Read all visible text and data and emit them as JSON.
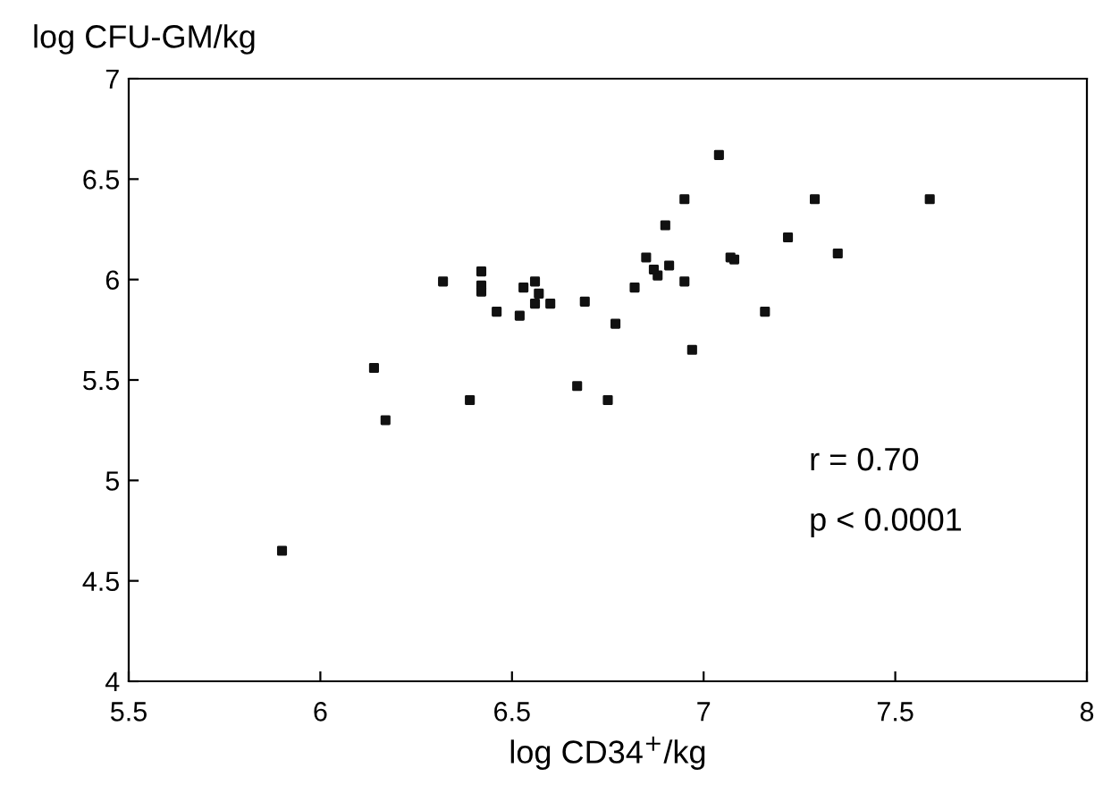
{
  "chart_data": {
    "type": "scatter",
    "xlabel": "log CD34$^{+}$/kg",
    "ylabel": "log CFU-GM/kg",
    "x": [
      5.9,
      6.14,
      6.17,
      6.32,
      6.39,
      6.42,
      6.42,
      6.42,
      6.46,
      6.52,
      6.53,
      6.56,
      6.56,
      6.57,
      6.6,
      6.67,
      6.69,
      6.75,
      6.77,
      6.82,
      6.85,
      6.87,
      6.88,
      6.9,
      6.91,
      6.95,
      6.95,
      6.97,
      7.04,
      7.07,
      7.08,
      7.16,
      7.22,
      7.29,
      7.35,
      7.59
    ],
    "values": [
      4.65,
      5.56,
      5.3,
      5.99,
      5.4,
      6.04,
      5.97,
      5.94,
      5.84,
      5.82,
      5.96,
      5.99,
      5.88,
      5.93,
      5.88,
      5.47,
      5.89,
      5.4,
      5.78,
      5.96,
      6.11,
      6.05,
      6.02,
      6.27,
      6.07,
      5.99,
      6.4,
      5.65,
      6.62,
      6.11,
      6.1,
      5.84,
      6.21,
      6.4,
      6.13,
      6.4
    ],
    "color": "#111111",
    "marker": "square",
    "xlim": [
      5.5,
      8
    ],
    "xticks": [
      5.5,
      6,
      6.5,
      7,
      7.5,
      8
    ],
    "ylim": [
      4,
      7
    ],
    "yticks": [
      4,
      4.5,
      5,
      5.5,
      6,
      6.5,
      7
    ],
    "annotations": [
      "r = 0.70",
      "p < 0.0001"
    ]
  }
}
